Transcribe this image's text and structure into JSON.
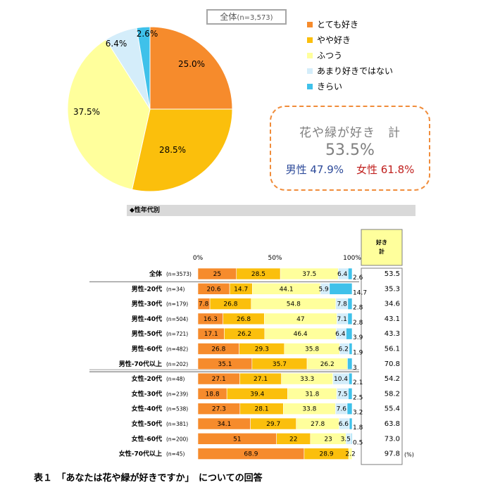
{
  "pie": {
    "title": "全体",
    "title_n": "(n=3,573)",
    "type": "pie",
    "slices": [
      {
        "label": "とても好き",
        "value": 25.0,
        "text": "25.0%",
        "color": "#f68b2c"
      },
      {
        "label": "やや好き",
        "value": 28.5,
        "text": "28.5%",
        "color": "#fbbf0c"
      },
      {
        "label": "ふつう",
        "value": 37.5,
        "text": "37.5%",
        "color": "#ffff9c"
      },
      {
        "label": "あまり好きではない",
        "value": 6.4,
        "text": "6.4%",
        "color": "#d4edfa"
      },
      {
        "label": "きらい",
        "value": 2.6,
        "text": "2.6%",
        "color": "#3fc1ea"
      }
    ]
  },
  "summary": {
    "title": "花や緑が好き　計",
    "total": "53.5%",
    "male": "男性 47.9%",
    "female": "女性 61.8%"
  },
  "section_header": "◆性年代別",
  "chart_data": {
    "type": "bar",
    "stacked": true,
    "orientation": "horizontal",
    "axis_ticks": [
      "0%",
      "50%",
      "100%"
    ],
    "xlim": [
      0,
      100
    ],
    "likes_header": "好き\n計",
    "unit_note": "(%)",
    "series_names": [
      "とても好き",
      "やや好き",
      "ふつう",
      "あまり好きではない",
      "きらい"
    ],
    "series_colors": [
      "#f68b2c",
      "#fbbf0c",
      "#ffff9c",
      "#d4edfa",
      "#3fc1ea"
    ],
    "rows": [
      {
        "label": "全体",
        "n": "(n=3573)",
        "values": [
          25,
          28.5,
          37.5,
          6.4,
          2.6
        ],
        "labels": [
          "25",
          "28.5",
          "37.5",
          "6.4",
          "2.6"
        ],
        "total": "53.5"
      },
      {
        "label": "男性-20代",
        "n": "(n=34)",
        "values": [
          20.6,
          14.7,
          44.1,
          5.9,
          14.7
        ],
        "labels": [
          "20.6",
          "14.7",
          "44.1",
          "5.9",
          "14.7"
        ],
        "total": "35.3"
      },
      {
        "label": "男性-30代",
        "n": "(n=179)",
        "values": [
          7.8,
          26.8,
          54.8,
          7.8,
          2.8
        ],
        "labels": [
          "7.8",
          "26.8",
          "54.8",
          "7.8",
          "2.8"
        ],
        "total": "34.6"
      },
      {
        "label": "男性-40代",
        "n": "(n=504)",
        "values": [
          16.3,
          26.8,
          47,
          7.1,
          2.8
        ],
        "labels": [
          "16.3",
          "26.8",
          "47",
          "7.1",
          "2.8"
        ],
        "total": "43.1"
      },
      {
        "label": "男性-50代",
        "n": "(n=721)",
        "values": [
          17.1,
          26.2,
          46.4,
          6.4,
          3.9
        ],
        "labels": [
          "17.1",
          "26.2",
          "46.4",
          "6.4",
          "3.9"
        ],
        "total": "43.3"
      },
      {
        "label": "男性-60代",
        "n": "(n=482)",
        "values": [
          26.8,
          29.3,
          35.8,
          6.2,
          1.9
        ],
        "labels": [
          "26.8",
          "29.3",
          "35.8",
          "6.2",
          "1.9"
        ],
        "total": "56.1"
      },
      {
        "label": "男性-70代以上",
        "n": "(n=202)",
        "values": [
          35.1,
          35.7,
          26.2,
          0,
          3
        ],
        "labels": [
          "35.1",
          "35.7",
          "26.2",
          "",
          "3"
        ],
        "total": "70.8"
      },
      {
        "label": "女性-20代",
        "n": "(n=48)",
        "values": [
          27.1,
          27.1,
          33.3,
          10.4,
          2.1
        ],
        "labels": [
          "27.1",
          "27.1",
          "33.3",
          "10.4",
          "2.1"
        ],
        "total": "54.2"
      },
      {
        "label": "女性-30代",
        "n": "(n=239)",
        "values": [
          18.8,
          39.4,
          31.8,
          7.5,
          2.5
        ],
        "labels": [
          "18.8",
          "39.4",
          "31.8",
          "7.5",
          "2.5"
        ],
        "total": "58.2"
      },
      {
        "label": "女性-40代",
        "n": "(n=538)",
        "values": [
          27.3,
          28.1,
          33.8,
          7.6,
          3.2
        ],
        "labels": [
          "27.3",
          "28.1",
          "33.8",
          "7.6",
          "3.2"
        ],
        "total": "55.4"
      },
      {
        "label": "女性-50代",
        "n": "(n=381)",
        "values": [
          34.1,
          29.7,
          27.8,
          6.6,
          1.8
        ],
        "labels": [
          "34.1",
          "29.7",
          "27.8",
          "6.6",
          "1.8"
        ],
        "total": "63.8"
      },
      {
        "label": "女性-60代",
        "n": "(n=200)",
        "values": [
          51,
          22,
          23,
          3.5,
          0.5
        ],
        "labels": [
          "51",
          "22",
          "23",
          "3.5",
          "0.5"
        ],
        "total": "73.0"
      },
      {
        "label": "女性-70代以上",
        "n": "(n=45)",
        "values": [
          68.9,
          28.9,
          2.2,
          0,
          0
        ],
        "labels": [
          "68.9",
          "28.9",
          "2.2",
          "",
          ""
        ],
        "total": "97.8"
      }
    ]
  },
  "caption": "表１　「あなたは花や緑が好きですか」　についての回答"
}
